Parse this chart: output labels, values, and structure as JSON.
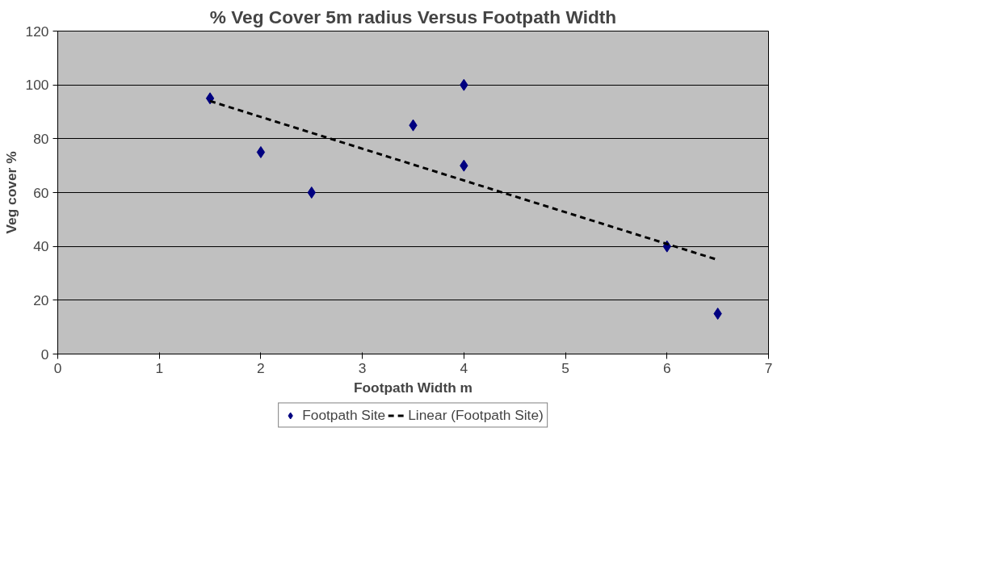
{
  "chart_data": {
    "type": "scatter",
    "title": "% Veg Cover 5m radius Versus Footpath Width",
    "xlabel": "Footpath Width m",
    "ylabel": "Veg cover %",
    "xlim": [
      0,
      7
    ],
    "xticks": [
      0,
      1,
      2,
      3,
      4,
      5,
      6,
      7
    ],
    "ylim": [
      0,
      120
    ],
    "yticks": [
      0,
      20,
      40,
      60,
      80,
      100,
      120
    ],
    "grid": "y",
    "legend": "bottom",
    "marker": "diamond",
    "series": [
      {
        "name": "Footpath Site",
        "color": "#000080",
        "x": [
          1.5,
          2,
          2.5,
          3.5,
          4,
          4,
          6,
          6.5
        ],
        "values": [
          95,
          75,
          60,
          85,
          100,
          70,
          40,
          15
        ]
      },
      {
        "name": "Linear (Footpath Site)",
        "type": "line",
        "line_style": "dashed",
        "marker": "none",
        "color": "#000000",
        "x": [
          1.5,
          6.5
        ],
        "values": [
          94,
          35
        ]
      }
    ]
  }
}
